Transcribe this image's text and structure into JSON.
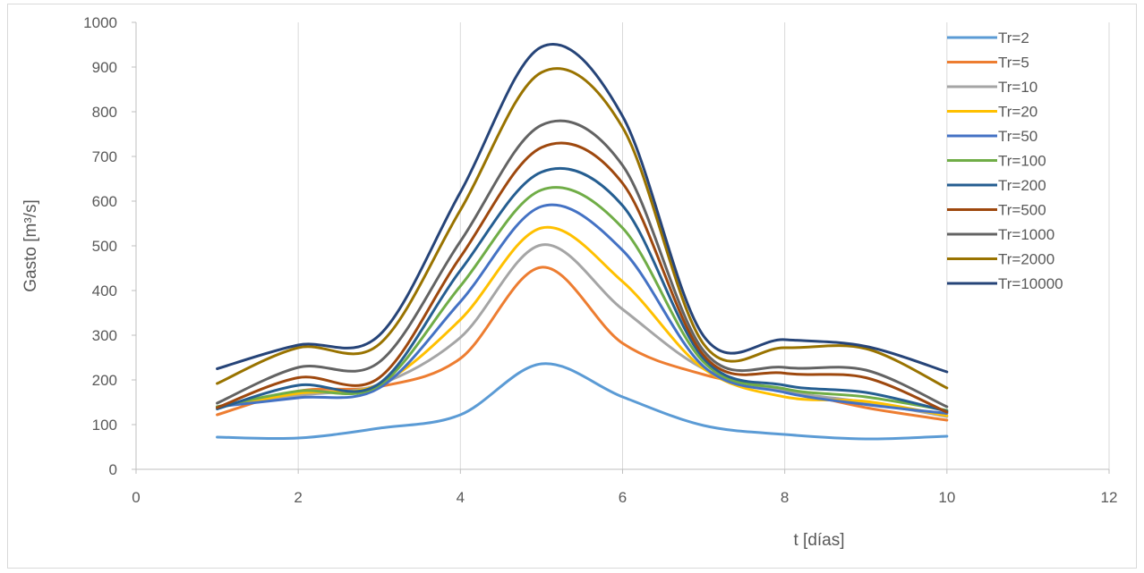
{
  "chart_data": {
    "type": "line",
    "title": "",
    "xlabel": "t [días]",
    "ylabel": "Gasto [m³/s]",
    "xlim": [
      0,
      12
    ],
    "ylim": [
      0,
      1000
    ],
    "xticks": [
      0,
      2,
      4,
      6,
      8,
      10,
      12
    ],
    "yticks": [
      0,
      100,
      200,
      300,
      400,
      500,
      600,
      700,
      800,
      900,
      1000
    ],
    "grid": "vertical",
    "legend_position": "right",
    "x": [
      1,
      2,
      3,
      4,
      5,
      6,
      7,
      8,
      9,
      10
    ],
    "series": [
      {
        "name": "Tr=2",
        "color": "#5B9BD5",
        "values": [
          72,
          70,
          92,
          122,
          236,
          162,
          98,
          78,
          68,
          74
        ]
      },
      {
        "name": "Tr=5",
        "color": "#ED7D31",
        "values": [
          122,
          175,
          185,
          248,
          452,
          282,
          212,
          178,
          138,
          110
        ]
      },
      {
        "name": "Tr=10",
        "color": "#A5A5A5",
        "values": [
          140,
          165,
          190,
          295,
          502,
          358,
          225,
          175,
          150,
          118
        ]
      },
      {
        "name": "Tr=20",
        "color": "#FFC000",
        "values": [
          138,
          170,
          190,
          335,
          540,
          420,
          225,
          162,
          152,
          120
        ]
      },
      {
        "name": "Tr=50",
        "color": "#4472C4",
        "values": [
          140,
          160,
          182,
          375,
          588,
          490,
          230,
          172,
          145,
          125
        ]
      },
      {
        "name": "Tr=100",
        "color": "#70AD47",
        "values": [
          140,
          175,
          188,
          410,
          625,
          540,
          240,
          180,
          162,
          132
        ]
      },
      {
        "name": "Tr=200",
        "color": "#255E91",
        "values": [
          135,
          188,
          192,
          445,
          665,
          590,
          248,
          188,
          172,
          130
        ]
      },
      {
        "name": "Tr=500",
        "color": "#9E480E",
        "values": [
          138,
          205,
          205,
          475,
          720,
          640,
          255,
          215,
          205,
          128
        ]
      },
      {
        "name": "Tr=1000",
        "color": "#636363",
        "values": [
          148,
          228,
          240,
          510,
          770,
          680,
          265,
          228,
          222,
          140
        ]
      },
      {
        "name": "Tr=2000",
        "color": "#997300",
        "values": [
          192,
          272,
          280,
          580,
          888,
          765,
          280,
          272,
          270,
          182
        ]
      },
      {
        "name": "Tr=10000",
        "color": "#264478",
        "values": [
          225,
          278,
          300,
          620,
          945,
          790,
          298,
          290,
          275,
          218
        ]
      }
    ]
  }
}
